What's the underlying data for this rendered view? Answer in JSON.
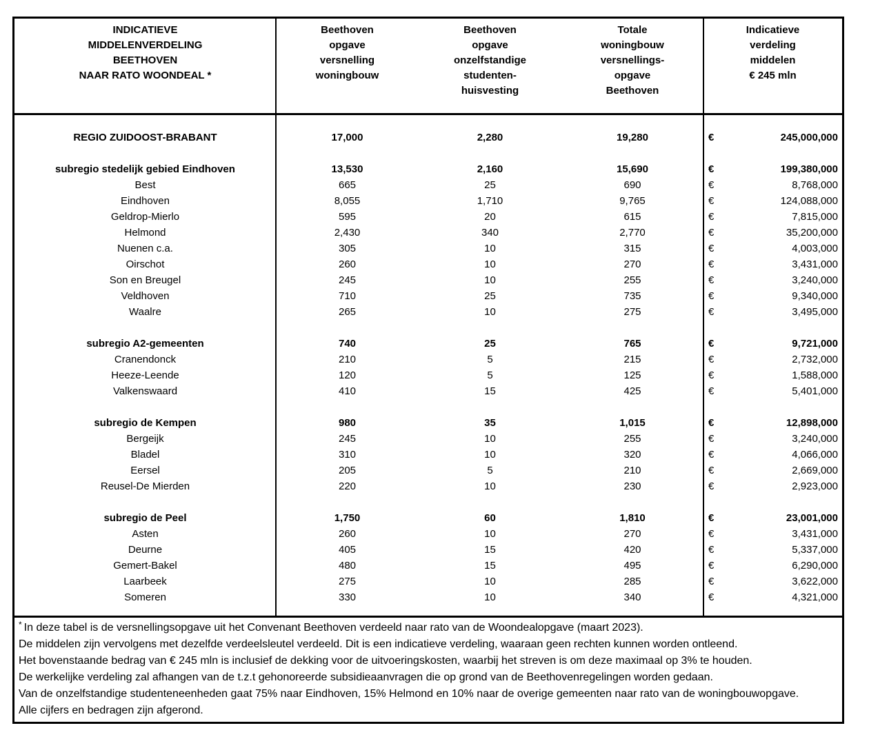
{
  "table": {
    "currency_symbol": "€",
    "header": {
      "title_lines": [
        "INDICATIEVE",
        "MIDDELENVERDELING",
        "BEETHOVEN",
        "NAAR RATO WOONDEAL *"
      ],
      "col_versnelling_lines": [
        "Beethoven",
        "opgave",
        "versnelling",
        "woningbouw"
      ],
      "col_studenten_lines": [
        "Beethoven",
        "opgave",
        "onzelfstandige",
        "studenten-",
        "huisvesting"
      ],
      "col_totaal_lines": [
        "Totale",
        "woningbouw",
        "versnellings-",
        "opgave",
        "Beethoven"
      ],
      "col_middelen_lines": [
        "Indicatieve",
        "verdeling",
        "middelen",
        "€ 245 mln"
      ]
    },
    "rows": [
      {
        "type": "data",
        "bold": true,
        "label": "REGIO ZUIDOOST-BRABANT",
        "versnelling": "17,000",
        "studenten": "2,280",
        "totaal": "19,280",
        "bedrag": "245,000,000"
      },
      {
        "type": "blank"
      },
      {
        "type": "data",
        "bold": true,
        "label": "subregio stedelijk gebied Eindhoven",
        "versnelling": "13,530",
        "studenten": "2,160",
        "totaal": "15,690",
        "bedrag": "199,380,000"
      },
      {
        "type": "data",
        "bold": false,
        "label": "Best",
        "versnelling": "665",
        "studenten": "25",
        "totaal": "690",
        "bedrag": "8,768,000"
      },
      {
        "type": "data",
        "bold": false,
        "label": "Eindhoven",
        "versnelling": "8,055",
        "studenten": "1,710",
        "totaal": "9,765",
        "bedrag": "124,088,000"
      },
      {
        "type": "data",
        "bold": false,
        "label": "Geldrop-Mierlo",
        "versnelling": "595",
        "studenten": "20",
        "totaal": "615",
        "bedrag": "7,815,000"
      },
      {
        "type": "data",
        "bold": false,
        "label": "Helmond",
        "versnelling": "2,430",
        "studenten": "340",
        "totaal": "2,770",
        "bedrag": "35,200,000"
      },
      {
        "type": "data",
        "bold": false,
        "label": "Nuenen c.a.",
        "versnelling": "305",
        "studenten": "10",
        "totaal": "315",
        "bedrag": "4,003,000"
      },
      {
        "type": "data",
        "bold": false,
        "label": "Oirschot",
        "versnelling": "260",
        "studenten": "10",
        "totaal": "270",
        "bedrag": "3,431,000"
      },
      {
        "type": "data",
        "bold": false,
        "label": "Son en Breugel",
        "versnelling": "245",
        "studenten": "10",
        "totaal": "255",
        "bedrag": "3,240,000"
      },
      {
        "type": "data",
        "bold": false,
        "label": "Veldhoven",
        "versnelling": "710",
        "studenten": "25",
        "totaal": "735",
        "bedrag": "9,340,000"
      },
      {
        "type": "data",
        "bold": false,
        "label": "Waalre",
        "versnelling": "265",
        "studenten": "10",
        "totaal": "275",
        "bedrag": "3,495,000"
      },
      {
        "type": "blank"
      },
      {
        "type": "data",
        "bold": true,
        "label": "subregio A2-gemeenten",
        "versnelling": "740",
        "studenten": "25",
        "totaal": "765",
        "bedrag": "9,721,000"
      },
      {
        "type": "data",
        "bold": false,
        "label": "Cranendonck",
        "versnelling": "210",
        "studenten": "5",
        "totaal": "215",
        "bedrag": "2,732,000"
      },
      {
        "type": "data",
        "bold": false,
        "label": "Heeze-Leende",
        "versnelling": "120",
        "studenten": "5",
        "totaal": "125",
        "bedrag": "1,588,000"
      },
      {
        "type": "data",
        "bold": false,
        "label": "Valkenswaard",
        "versnelling": "410",
        "studenten": "15",
        "totaal": "425",
        "bedrag": "5,401,000"
      },
      {
        "type": "blank"
      },
      {
        "type": "data",
        "bold": true,
        "label": "subregio de Kempen",
        "versnelling": "980",
        "studenten": "35",
        "totaal": "1,015",
        "bedrag": "12,898,000"
      },
      {
        "type": "data",
        "bold": false,
        "label": "Bergeijk",
        "versnelling": "245",
        "studenten": "10",
        "totaal": "255",
        "bedrag": "3,240,000"
      },
      {
        "type": "data",
        "bold": false,
        "label": "Bladel",
        "versnelling": "310",
        "studenten": "10",
        "totaal": "320",
        "bedrag": "4,066,000"
      },
      {
        "type": "data",
        "bold": false,
        "label": "Eersel",
        "versnelling": "205",
        "studenten": "5",
        "totaal": "210",
        "bedrag": "2,669,000"
      },
      {
        "type": "data",
        "bold": false,
        "label": "Reusel-De Mierden",
        "versnelling": "220",
        "studenten": "10",
        "totaal": "230",
        "bedrag": "2,923,000"
      },
      {
        "type": "blank"
      },
      {
        "type": "data",
        "bold": true,
        "label": "subregio de Peel",
        "versnelling": "1,750",
        "studenten": "60",
        "totaal": "1,810",
        "bedrag": "23,001,000"
      },
      {
        "type": "data",
        "bold": false,
        "label": "Asten",
        "versnelling": "260",
        "studenten": "10",
        "totaal": "270",
        "bedrag": "3,431,000"
      },
      {
        "type": "data",
        "bold": false,
        "label": "Deurne",
        "versnelling": "405",
        "studenten": "15",
        "totaal": "420",
        "bedrag": "5,337,000"
      },
      {
        "type": "data",
        "bold": false,
        "label": "Gemert-Bakel",
        "versnelling": "480",
        "studenten": "15",
        "totaal": "495",
        "bedrag": "6,290,000"
      },
      {
        "type": "data",
        "bold": false,
        "label": "Laarbeek",
        "versnelling": "275",
        "studenten": "10",
        "totaal": "285",
        "bedrag": "3,622,000"
      },
      {
        "type": "data",
        "bold": false,
        "label": "Someren",
        "versnelling": "330",
        "studenten": "10",
        "totaal": "340",
        "bedrag": "4,321,000"
      }
    ]
  },
  "footnotes": [
    {
      "marker": "*",
      "text": "In deze tabel is de versnellingsopgave uit het Convenant Beethoven verdeeld naar rato van de Woondealopgave (maart 2023)."
    },
    {
      "marker": "",
      "text": "De middelen zijn vervolgens met dezelfde verdeelsleutel verdeeld. Dit is een indicatieve verdeling, waaraan geen rechten kunnen worden ontleend."
    },
    {
      "marker": "",
      "text": "Het bovenstaande bedrag van € 245 mln is inclusief de dekking voor de uitvoeringskosten, waarbij het streven is om deze maximaal op 3% te houden."
    },
    {
      "marker": "",
      "text": "De werkelijke verdeling zal afhangen van de t.z.t gehonoreerde subsidieaanvragen die op grond van de Beethovenregelingen worden gedaan."
    },
    {
      "marker": "",
      "text": "Van de onzelfstandige studenteneenheden gaat 75% naar Eindhoven, 15% Helmond en 10% naar de overige gemeenten naar rato van de woningbouwopgave."
    },
    {
      "marker": "",
      "text": "Alle cijfers en bedragen zijn afgerond."
    }
  ]
}
